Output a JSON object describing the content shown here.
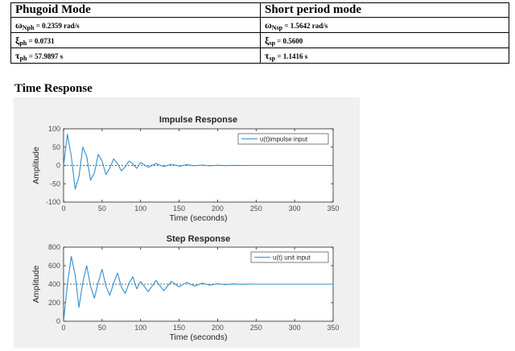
{
  "table": {
    "headers": [
      "Phugoid Mode",
      "Short period mode"
    ],
    "rows": [
      [
        {
          "symbol": "ω",
          "sub": "Nph",
          "text": " = 0.2359 rad/s"
        },
        {
          "symbol": "ω",
          "sub": "Nsp",
          "text": " = 1.5642 rad/s"
        }
      ],
      [
        {
          "symbol": "ξ",
          "sub": "ph",
          "text": " = 0.0731"
        },
        {
          "symbol": "ξ",
          "sub": "sp",
          "text": " = 0.5600"
        }
      ],
      [
        {
          "symbol": "τ",
          "sub": "ph",
          "text": " = 57.9897 s"
        },
        {
          "symbol": "τ",
          "sub": "sp",
          "text": " = 1.1416 s"
        }
      ]
    ]
  },
  "section_title": "Time Response",
  "colors": {
    "line": "#2f8fd0",
    "ref": "#333333",
    "axes": "#262626",
    "figure_bg": "#f0f0f0"
  },
  "chart_data": [
    {
      "type": "line",
      "title": "Impulse Response",
      "xlabel": "Time (seconds)",
      "ylabel": "Amplitude",
      "xlim": [
        0,
        350
      ],
      "ylim": [
        -100,
        100
      ],
      "xticks": [
        0,
        50,
        100,
        150,
        200,
        250,
        300,
        350
      ],
      "yticks": [
        -100,
        -50,
        0,
        50,
        100
      ],
      "grid": false,
      "legend": "top-right",
      "reference_line_y": 0,
      "series": [
        {
          "name": "u(t)impulse input",
          "x": [
            0,
            5,
            10,
            15,
            20,
            25,
            30,
            35,
            40,
            45,
            50,
            55,
            60,
            65,
            70,
            75,
            80,
            85,
            90,
            95,
            100,
            110,
            120,
            130,
            140,
            150,
            160,
            170,
            180,
            190,
            200,
            210,
            220,
            230,
            240,
            250,
            275,
            300,
            325,
            350
          ],
          "y": [
            0,
            85,
            25,
            -65,
            -30,
            50,
            25,
            -40,
            -20,
            30,
            12,
            -25,
            -8,
            18,
            5,
            -15,
            -4,
            12,
            4,
            -8,
            8,
            -5,
            5,
            -3,
            3,
            -2,
            2,
            -1,
            1,
            -1,
            0.5,
            -0.5,
            0.3,
            -0.2,
            0.1,
            0,
            0,
            0,
            0,
            0
          ]
        }
      ]
    },
    {
      "type": "line",
      "title": "Step Response",
      "xlabel": "Time (seconds)",
      "ylabel": "Amplitude",
      "xlim": [
        0,
        350
      ],
      "ylim": [
        0,
        800
      ],
      "xticks": [
        0,
        50,
        100,
        150,
        200,
        250,
        300,
        350
      ],
      "yticks": [
        0,
        200,
        400,
        600,
        800
      ],
      "grid": false,
      "legend": "top-right",
      "reference_line_y": 400,
      "series": [
        {
          "name": "u(t) unit input",
          "x": [
            0,
            5,
            10,
            15,
            20,
            25,
            30,
            35,
            40,
            45,
            50,
            55,
            60,
            65,
            70,
            75,
            80,
            85,
            90,
            95,
            100,
            110,
            120,
            130,
            140,
            150,
            160,
            170,
            180,
            190,
            200,
            210,
            220,
            230,
            240,
            250,
            275,
            300,
            325,
            350
          ],
          "y": [
            0,
            400,
            700,
            500,
            150,
            420,
            600,
            380,
            250,
            420,
            560,
            380,
            280,
            410,
            520,
            370,
            300,
            410,
            480,
            350,
            430,
            320,
            440,
            330,
            430,
            370,
            420,
            380,
            410,
            390,
            405,
            395,
            403,
            398,
            401,
            400,
            400,
            400,
            400,
            400
          ]
        }
      ]
    }
  ]
}
